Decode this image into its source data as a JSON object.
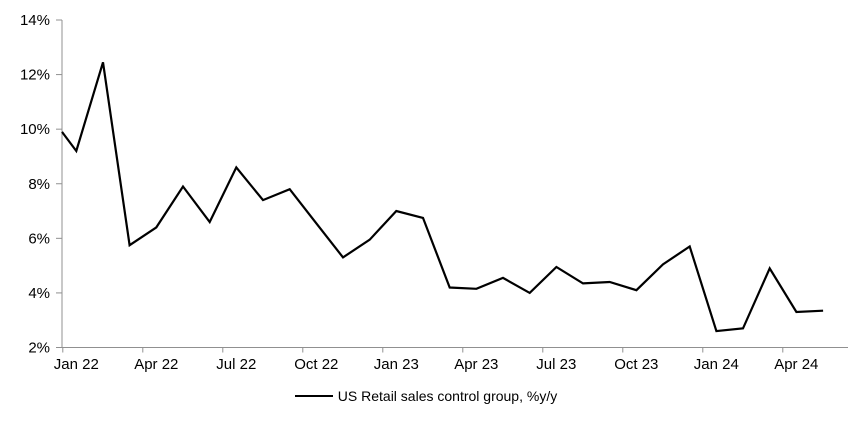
{
  "chart_data": {
    "type": "line",
    "title": "",
    "xlabel": "",
    "ylabel": "",
    "categories": [
      "Jan 22",
      "Feb 22",
      "Mar 22",
      "Apr 22",
      "May 22",
      "Jun 22",
      "Jul 22",
      "Aug 22",
      "Sep 22",
      "Oct 22",
      "Nov 22",
      "Dec 22",
      "Jan 23",
      "Feb 23",
      "Mar 23",
      "Apr 23",
      "May 23",
      "Jun 23",
      "Jul 23",
      "Aug 23",
      "Sep 23",
      "Oct 23",
      "Nov 23",
      "Dec 23",
      "Jan 24",
      "Feb 24",
      "Mar 24",
      "Apr 24",
      "May 24"
    ],
    "series": [
      {
        "name": "US Retail sales control group, %y/y",
        "color": "#000000",
        "values": [
          9.2,
          12.45,
          5.75,
          6.4,
          7.9,
          6.6,
          8.6,
          7.4,
          7.8,
          6.55,
          5.3,
          5.95,
          7.0,
          6.75,
          4.2,
          4.15,
          4.55,
          4.0,
          4.95,
          4.35,
          4.4,
          4.1,
          5.05,
          5.7,
          2.6,
          2.7,
          4.9,
          3.3,
          3.35
        ]
      }
    ],
    "edge_entry_value": 9.9,
    "ylim": [
      2,
      14
    ],
    "y_tick_step": 2,
    "y_tick_labels": [
      "14%",
      "12%",
      "10%",
      "8%",
      "6%",
      "4%",
      "2%"
    ],
    "x_tick_labels": [
      "Jan 22",
      "Apr 22",
      "Jul 22",
      "Oct 22",
      "Jan 23",
      "Apr 23",
      "Jul 23",
      "Oct 23",
      "Jan 24",
      "Apr 24"
    ],
    "grid": false,
    "legend_position": "bottom",
    "axis_color": "#909090",
    "text_color": "#000000",
    "background_color": "#ffffff"
  }
}
